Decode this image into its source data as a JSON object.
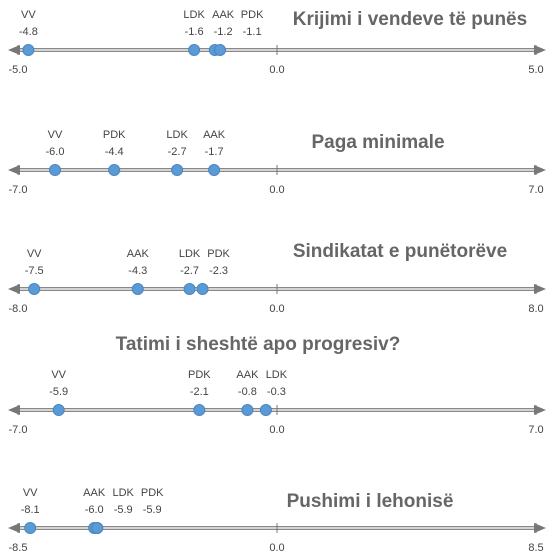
{
  "chart_data": [
    {
      "type": "scatter",
      "title": "Krijimi i vendeve të punës",
      "categories": [
        "VV",
        "LDK",
        "AAK",
        "PDK"
      ],
      "values": [
        -4.8,
        -1.6,
        -1.2,
        -1.1
      ],
      "value_labels": [
        "-4.8",
        "-1.6",
        "-1.2",
        "-1.1"
      ],
      "color": "#5b9bd5",
      "xlim": [
        -5,
        5
      ],
      "xticks": [
        {
          "value": -5,
          "label": "-5.0"
        },
        {
          "value": 0,
          "label": "0.0"
        },
        {
          "value": 5,
          "label": "5.0"
        }
      ]
    },
    {
      "type": "scatter",
      "title": "Paga minimale",
      "categories": [
        "VV",
        "PDK",
        "LDK",
        "AAK"
      ],
      "values": [
        -6.0,
        -4.4,
        -2.7,
        -1.7
      ],
      "value_labels": [
        "-6.0",
        "-4.4",
        "-2.7",
        "-1.7"
      ],
      "color": "#5b9bd5",
      "xlim": [
        -7,
        7
      ],
      "xticks": [
        {
          "value": -7,
          "label": "-7.0"
        },
        {
          "value": 0,
          "label": "0.0"
        },
        {
          "value": 7,
          "label": "7.0"
        }
      ]
    },
    {
      "type": "scatter",
      "title": "Sindikatat e punëtorëve",
      "categories": [
        "VV",
        "AAK",
        "LDK",
        "PDK"
      ],
      "values": [
        -7.5,
        -4.3,
        -2.7,
        -2.3
      ],
      "value_labels": [
        "-7.5",
        "-4.3",
        "-2.7",
        "-2.3"
      ],
      "color": "#5b9bd5",
      "xlim": [
        -8,
        8
      ],
      "xticks": [
        {
          "value": -8,
          "label": "-8.0"
        },
        {
          "value": 0,
          "label": "0.0"
        },
        {
          "value": 8,
          "label": "8.0"
        }
      ]
    },
    {
      "type": "scatter",
      "title": "Tatimi i sheshtë apo progresiv?",
      "categories": [
        "VV",
        "PDK",
        "AAK",
        "LDK"
      ],
      "values": [
        -5.9,
        -2.1,
        -0.8,
        -0.3
      ],
      "value_labels": [
        "-5.9",
        "-2.1",
        "-0.8",
        "-0.3"
      ],
      "color": "#5b9bd5",
      "xlim": [
        -7,
        7
      ],
      "xticks": [
        {
          "value": -7,
          "label": "-7.0"
        },
        {
          "value": 0,
          "label": "0.0"
        },
        {
          "value": 7,
          "label": "7.0"
        }
      ]
    },
    {
      "type": "scatter",
      "title": "Pushimi i lehonisë",
      "categories": [
        "VV",
        "AAK",
        "LDK",
        "PDK"
      ],
      "values": [
        -8.1,
        -6.0,
        -5.9,
        -5.9
      ],
      "value_labels": [
        "-8.1",
        "-6.0",
        "-5.9",
        "-5.9"
      ],
      "color": "#5b9bd5",
      "xlim": [
        -8.5,
        8.5
      ],
      "xticks": [
        {
          "value": -8.5,
          "label": "-8.5"
        },
        {
          "value": 0,
          "label": "0.0"
        },
        {
          "value": 8.5,
          "label": "8.5"
        }
      ]
    }
  ]
}
